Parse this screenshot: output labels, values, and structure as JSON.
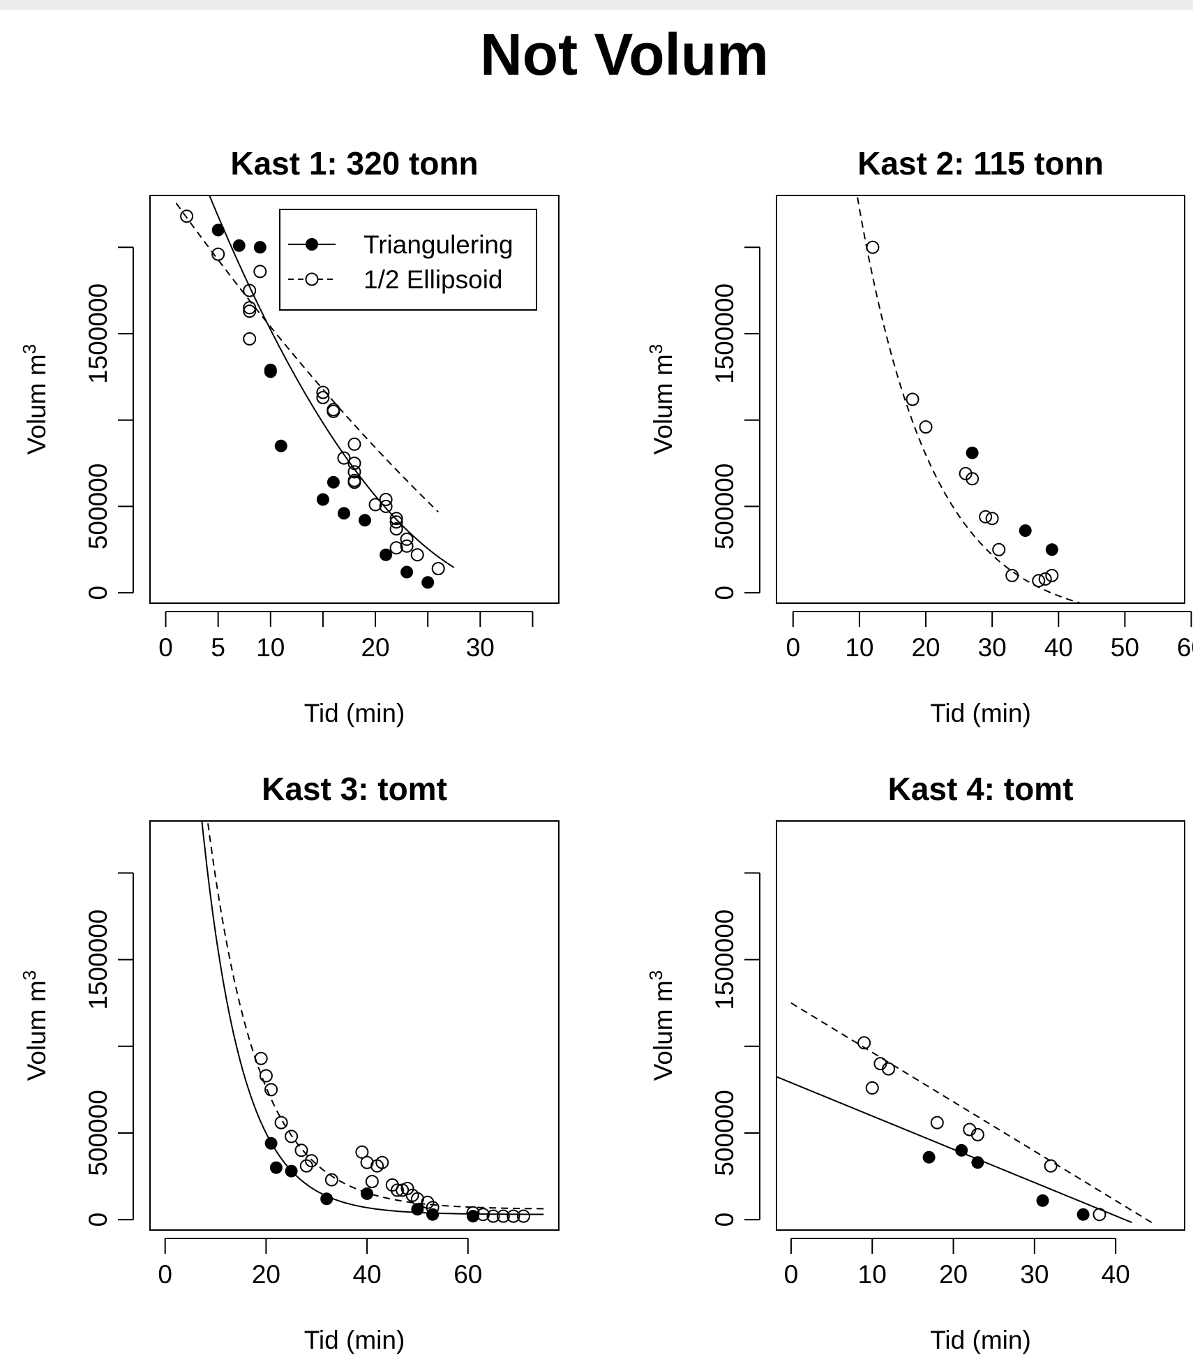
{
  "figure": {
    "title": "Not Volum"
  },
  "legend": {
    "placement": "top-right (panel 1)",
    "entries": [
      {
        "label": "Triangulering",
        "marker": "filled-circle",
        "line": "solid"
      },
      {
        "label": "1/2 Ellipsoid",
        "marker": "open-circle",
        "line": "dashed"
      }
    ]
  },
  "chart_data": [
    {
      "type": "scatter",
      "title": "Kast 1: 320 tonn",
      "xlabel": "Tid (min)",
      "ylabel": "Volum m",
      "ylabel_sup": "3",
      "xlim": [
        -1.5,
        37.5
      ],
      "ylim": [
        -60000,
        2300000
      ],
      "xticks": [
        0,
        5,
        10,
        15,
        20,
        25,
        30,
        35
      ],
      "xticklabels": [
        "0",
        "5",
        "10",
        "",
        "20",
        "",
        "30",
        ""
      ],
      "yticks": [
        0,
        500000,
        1000000,
        1500000,
        2000000
      ],
      "yticklabels": [
        "0",
        "500000",
        "",
        "1500000",
        ""
      ],
      "legend": true,
      "series": [
        {
          "name": "Triangulering",
          "marker": "filled",
          "points": [
            [
              5,
              2100000
            ],
            [
              7,
              2010000
            ],
            [
              9,
              2000000
            ],
            [
              10,
              1290000
            ],
            [
              10,
              1280000
            ],
            [
              11,
              850000
            ],
            [
              15,
              540000
            ],
            [
              16,
              640000
            ],
            [
              17,
              460000
            ],
            [
              19,
              420000
            ],
            [
              21,
              220000
            ],
            [
              23,
              120000
            ],
            [
              25,
              60000
            ]
          ],
          "fit": {
            "form": "quadratic",
            "coef": [
              2953000,
              -166400,
              2340
            ],
            "x_range": [
              3,
              27.5
            ]
          }
        },
        {
          "name": "1/2 Ellipsoid",
          "marker": "open",
          "points": [
            [
              2,
              2180000
            ],
            [
              5,
              1960000
            ],
            [
              8,
              1750000
            ],
            [
              8,
              1650000
            ],
            [
              8,
              1630000
            ],
            [
              8,
              1470000
            ],
            [
              9,
              1860000
            ],
            [
              15,
              1160000
            ],
            [
              15,
              1130000
            ],
            [
              16,
              1060000
            ],
            [
              16,
              1050000
            ],
            [
              17,
              780000
            ],
            [
              18,
              860000
            ],
            [
              18,
              750000
            ],
            [
              18,
              700000
            ],
            [
              18,
              650000
            ],
            [
              18,
              640000
            ],
            [
              20,
              510000
            ],
            [
              21,
              540000
            ],
            [
              21,
              500000
            ],
            [
              22,
              430000
            ],
            [
              22,
              410000
            ],
            [
              22,
              370000
            ],
            [
              22,
              260000
            ],
            [
              23,
              310000
            ],
            [
              23,
              270000
            ],
            [
              24,
              220000
            ],
            [
              26,
              140000
            ]
          ],
          "fit": {
            "form": "quadratic",
            "coef": [
              2340000,
              -85000,
              500
            ],
            "x_range": [
              1,
              26
            ]
          }
        }
      ]
    },
    {
      "type": "scatter",
      "title": "Kast 2: 115 tonn",
      "xlabel": "Tid (min)",
      "ylabel": "Volum m",
      "ylabel_sup": "3",
      "xlim": [
        -2.5,
        59
      ],
      "ylim": [
        -60000,
        2300000
      ],
      "xticks": [
        0,
        10,
        20,
        30,
        40,
        50,
        60
      ],
      "xticklabels": [
        "0",
        "10",
        "20",
        "30",
        "40",
        "50",
        "60"
      ],
      "yticks": [
        0,
        500000,
        1000000,
        1500000,
        2000000
      ],
      "yticklabels": [
        "0",
        "500000",
        "",
        "1500000",
        ""
      ],
      "legend": false,
      "series": [
        {
          "name": "Triangulering",
          "marker": "filled",
          "points": [
            [
              27,
              810000
            ],
            [
              35,
              360000
            ],
            [
              39,
              250000
            ]
          ]
        },
        {
          "name": "1/2 Ellipsoid",
          "marker": "open",
          "points": [
            [
              12,
              2000000
            ],
            [
              18,
              1120000
            ],
            [
              20,
              960000
            ],
            [
              26,
              690000
            ],
            [
              27,
              660000
            ],
            [
              29,
              440000
            ],
            [
              30,
              430000
            ],
            [
              31,
              250000
            ],
            [
              33,
              100000
            ],
            [
              37,
              70000
            ],
            [
              38,
              80000
            ],
            [
              39,
              100000
            ]
          ],
          "fit": {
            "form": "exponential",
            "a": 5900000,
            "b": -0.0898,
            "c": -180000,
            "x_range": [
              8,
              45
            ]
          }
        }
      ]
    },
    {
      "type": "scatter",
      "title": "Kast 3: tomt",
      "xlabel": "Tid (min)",
      "ylabel": "Volum m",
      "ylabel_sup": "3",
      "xlim": [
        -3,
        78
      ],
      "ylim": [
        -60000,
        2300000
      ],
      "xticks": [
        0,
        20,
        40,
        60
      ],
      "xticklabels": [
        "0",
        "20",
        "40",
        "60"
      ],
      "yticks": [
        0,
        500000,
        1000000,
        1500000,
        2000000
      ],
      "yticklabels": [
        "0",
        "500000",
        "",
        "1500000",
        ""
      ],
      "legend": false,
      "series": [
        {
          "name": "Triangulering",
          "marker": "filled",
          "points": [
            [
              21,
              440000
            ],
            [
              22,
              300000
            ],
            [
              25,
              280000
            ],
            [
              32,
              120000
            ],
            [
              40,
              150000
            ],
            [
              50,
              60000
            ],
            [
              53,
              30000
            ],
            [
              61,
              20000
            ]
          ],
          "fit": {
            "form": "exponential",
            "a": 5600000,
            "b": -0.124,
            "c": 30000,
            "x_range": [
              3.5,
              75
            ]
          }
        },
        {
          "name": "1/2 Ellipsoid",
          "marker": "open",
          "points": [
            [
              19,
              930000
            ],
            [
              20,
              830000
            ],
            [
              21,
              750000
            ],
            [
              23,
              560000
            ],
            [
              25,
              480000
            ],
            [
              27,
              400000
            ],
            [
              28,
              310000
            ],
            [
              29,
              340000
            ],
            [
              33,
              230000
            ],
            [
              39,
              390000
            ],
            [
              40,
              330000
            ],
            [
              41,
              220000
            ],
            [
              42,
              310000
            ],
            [
              43,
              330000
            ],
            [
              45,
              200000
            ],
            [
              46,
              170000
            ],
            [
              47,
              170000
            ],
            [
              48,
              180000
            ],
            [
              49,
              140000
            ],
            [
              50,
              120000
            ],
            [
              52,
              100000
            ],
            [
              53,
              70000
            ],
            [
              61,
              40000
            ],
            [
              63,
              30000
            ],
            [
              65,
              20000
            ],
            [
              67,
              20000
            ],
            [
              69,
              20000
            ],
            [
              71,
              20000
            ]
          ],
          "fit": {
            "form": "exponential",
            "a": 5200000,
            "b": -0.1,
            "c": 60000,
            "x_range": [
              4.5,
              75
            ]
          }
        }
      ]
    },
    {
      "type": "scatter",
      "title": "Kast 4: tomt",
      "xlabel": "Tid (min)",
      "ylabel": "Volum m",
      "ylabel_sup": "3",
      "xlim": [
        -1.8,
        48.5
      ],
      "ylim": [
        -60000,
        2300000
      ],
      "xticks": [
        0,
        10,
        20,
        30,
        40
      ],
      "xticklabels": [
        "0",
        "10",
        "20",
        "30",
        "40"
      ],
      "yticks": [
        0,
        500000,
        1000000,
        1500000,
        2000000
      ],
      "yticklabels": [
        "0",
        "500000",
        "",
        "1500000",
        ""
      ],
      "legend": false,
      "series": [
        {
          "name": "Triangulering",
          "marker": "filled",
          "points": [
            [
              17,
              360000
            ],
            [
              21,
              400000
            ],
            [
              23,
              330000
            ],
            [
              31,
              110000
            ],
            [
              36,
              30000
            ]
          ],
          "fit": {
            "form": "linear",
            "coef": [
              790000,
              -19200
            ],
            "x_range": [
              -1.8,
              42
            ]
          }
        },
        {
          "name": "1/2 Ellipsoid",
          "marker": "open",
          "points": [
            [
              9,
              1020000
            ],
            [
              10,
              760000
            ],
            [
              11,
              900000
            ],
            [
              12,
              870000
            ],
            [
              18,
              560000
            ],
            [
              22,
              520000
            ],
            [
              23,
              490000
            ],
            [
              32,
              310000
            ],
            [
              38,
              30000
            ]
          ],
          "fit": {
            "form": "linear",
            "coef": [
              1250000,
              -28500
            ],
            "x_range": [
              0,
              44.5
            ]
          }
        }
      ]
    }
  ]
}
